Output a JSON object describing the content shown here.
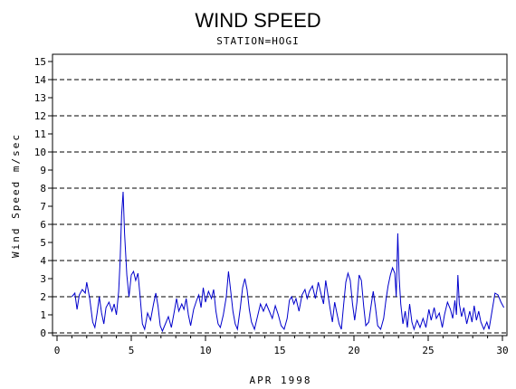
{
  "chart_data": {
    "type": "line",
    "title": "WIND SPEED",
    "subtitle": "STATION=HOGI",
    "xlabel": "APR 1998",
    "ylabel": "Wind Speed m/sec",
    "xlim": [
      0,
      30.3
    ],
    "ylim": [
      0,
      15.4
    ],
    "x_ticks": [
      0,
      5,
      10,
      15,
      20,
      25,
      30
    ],
    "y_ticks": [
      0,
      1,
      2,
      3,
      4,
      5,
      6,
      7,
      8,
      9,
      10,
      11,
      12,
      13,
      14,
      15
    ],
    "y_tick_labels": [
      "0",
      "1",
      "2",
      "3",
      "4",
      "5",
      "6",
      "7",
      "8",
      "9",
      "10",
      "11",
      "12",
      "13",
      "14",
      "15"
    ],
    "x_tick_labels": [
      "0",
      "5",
      "10",
      "15",
      "20",
      "25",
      "30"
    ],
    "grid_y": [
      2,
      4,
      6,
      8,
      10,
      12,
      14
    ],
    "grid_style": "dashed",
    "line_color": "#0000cc",
    "series": [
      {
        "points": [
          [
            1.0,
            2.0
          ],
          [
            1.2,
            2.2
          ],
          [
            1.35,
            1.3
          ],
          [
            1.5,
            2.1
          ],
          [
            1.7,
            2.4
          ],
          [
            1.9,
            2.2
          ],
          [
            2.0,
            2.8
          ],
          [
            2.2,
            1.9
          ],
          [
            2.4,
            0.6
          ],
          [
            2.55,
            0.3
          ],
          [
            2.7,
            1.1
          ],
          [
            2.85,
            2.0
          ],
          [
            3.0,
            1.1
          ],
          [
            3.15,
            0.5
          ],
          [
            3.3,
            1.4
          ],
          [
            3.5,
            1.7
          ],
          [
            3.7,
            1.2
          ],
          [
            3.85,
            1.6
          ],
          [
            4.0,
            1.0
          ],
          [
            4.15,
            2.3
          ],
          [
            4.25,
            4.0
          ],
          [
            4.35,
            6.5
          ],
          [
            4.45,
            7.8
          ],
          [
            4.55,
            5.5
          ],
          [
            4.7,
            3.2
          ],
          [
            4.85,
            2.0
          ],
          [
            5.0,
            3.2
          ],
          [
            5.15,
            3.4
          ],
          [
            5.3,
            2.9
          ],
          [
            5.45,
            3.3
          ],
          [
            5.6,
            2.0
          ],
          [
            5.75,
            0.5
          ],
          [
            5.9,
            0.2
          ],
          [
            6.1,
            1.1
          ],
          [
            6.3,
            0.7
          ],
          [
            6.5,
            1.6
          ],
          [
            6.65,
            2.2
          ],
          [
            6.8,
            1.5
          ],
          [
            6.95,
            0.4
          ],
          [
            7.1,
            0.1
          ],
          [
            7.3,
            0.5
          ],
          [
            7.5,
            0.9
          ],
          [
            7.7,
            0.3
          ],
          [
            7.9,
            1.2
          ],
          [
            8.05,
            1.9
          ],
          [
            8.2,
            1.2
          ],
          [
            8.4,
            1.6
          ],
          [
            8.55,
            1.3
          ],
          [
            8.7,
            1.9
          ],
          [
            8.85,
            1.0
          ],
          [
            9.0,
            0.4
          ],
          [
            9.2,
            1.3
          ],
          [
            9.4,
            1.8
          ],
          [
            9.55,
            2.1
          ],
          [
            9.7,
            1.4
          ],
          [
            9.85,
            2.5
          ],
          [
            10.0,
            1.7
          ],
          [
            10.2,
            2.3
          ],
          [
            10.4,
            1.9
          ],
          [
            10.55,
            2.4
          ],
          [
            10.7,
            1.2
          ],
          [
            10.85,
            0.5
          ],
          [
            11.0,
            0.3
          ],
          [
            11.2,
            1.0
          ],
          [
            11.4,
            2.0
          ],
          [
            11.55,
            3.4
          ],
          [
            11.7,
            2.3
          ],
          [
            11.85,
            1.2
          ],
          [
            12.0,
            0.5
          ],
          [
            12.15,
            0.2
          ],
          [
            12.35,
            1.4
          ],
          [
            12.5,
            2.5
          ],
          [
            12.65,
            3.0
          ],
          [
            12.8,
            2.4
          ],
          [
            12.95,
            1.3
          ],
          [
            13.1,
            0.6
          ],
          [
            13.3,
            0.2
          ],
          [
            13.5,
            0.9
          ],
          [
            13.7,
            1.6
          ],
          [
            13.9,
            1.2
          ],
          [
            14.1,
            1.6
          ],
          [
            14.3,
            1.2
          ],
          [
            14.5,
            0.8
          ],
          [
            14.7,
            1.5
          ],
          [
            14.9,
            1.0
          ],
          [
            15.1,
            0.4
          ],
          [
            15.3,
            0.2
          ],
          [
            15.5,
            0.8
          ],
          [
            15.65,
            1.8
          ],
          [
            15.8,
            2.0
          ],
          [
            15.95,
            1.6
          ],
          [
            16.1,
            1.9
          ],
          [
            16.3,
            1.2
          ],
          [
            16.5,
            2.1
          ],
          [
            16.7,
            2.4
          ],
          [
            16.85,
            1.9
          ],
          [
            17.0,
            2.3
          ],
          [
            17.2,
            2.6
          ],
          [
            17.4,
            1.9
          ],
          [
            17.6,
            2.8
          ],
          [
            17.8,
            2.1
          ],
          [
            17.95,
            1.6
          ],
          [
            18.1,
            2.9
          ],
          [
            18.25,
            2.1
          ],
          [
            18.4,
            1.3
          ],
          [
            18.55,
            0.6
          ],
          [
            18.7,
            1.7
          ],
          [
            18.85,
            1.1
          ],
          [
            19.0,
            0.5
          ],
          [
            19.15,
            0.2
          ],
          [
            19.3,
            1.5
          ],
          [
            19.45,
            2.8
          ],
          [
            19.6,
            3.3
          ],
          [
            19.75,
            2.9
          ],
          [
            19.9,
            1.6
          ],
          [
            20.05,
            0.7
          ],
          [
            20.2,
            1.7
          ],
          [
            20.35,
            3.2
          ],
          [
            20.5,
            2.9
          ],
          [
            20.65,
            1.5
          ],
          [
            20.8,
            0.4
          ],
          [
            21.0,
            0.6
          ],
          [
            21.15,
            1.5
          ],
          [
            21.3,
            2.3
          ],
          [
            21.45,
            1.4
          ],
          [
            21.6,
            0.4
          ],
          [
            21.8,
            0.2
          ],
          [
            22.0,
            0.8
          ],
          [
            22.15,
            1.8
          ],
          [
            22.3,
            2.6
          ],
          [
            22.45,
            3.2
          ],
          [
            22.6,
            3.6
          ],
          [
            22.75,
            3.3
          ],
          [
            22.85,
            2.0
          ],
          [
            22.95,
            5.5
          ],
          [
            23.05,
            3.0
          ],
          [
            23.15,
            1.6
          ],
          [
            23.3,
            0.5
          ],
          [
            23.45,
            1.2
          ],
          [
            23.6,
            0.3
          ],
          [
            23.75,
            1.6
          ],
          [
            23.9,
            0.6
          ],
          [
            24.05,
            0.2
          ],
          [
            24.25,
            0.7
          ],
          [
            24.45,
            0.3
          ],
          [
            24.65,
            0.8
          ],
          [
            24.85,
            0.3
          ],
          [
            25.05,
            1.3
          ],
          [
            25.2,
            0.7
          ],
          [
            25.4,
            1.4
          ],
          [
            25.55,
            0.8
          ],
          [
            25.75,
            1.1
          ],
          [
            25.95,
            0.3
          ],
          [
            26.1,
            1.0
          ],
          [
            26.3,
            1.7
          ],
          [
            26.5,
            1.3
          ],
          [
            26.65,
            0.8
          ],
          [
            26.8,
            1.8
          ],
          [
            26.9,
            1.0
          ],
          [
            27.0,
            3.2
          ],
          [
            27.1,
            1.6
          ],
          [
            27.25,
            0.9
          ],
          [
            27.4,
            1.4
          ],
          [
            27.6,
            0.5
          ],
          [
            27.8,
            1.2
          ],
          [
            27.95,
            0.6
          ],
          [
            28.1,
            1.5
          ],
          [
            28.25,
            0.7
          ],
          [
            28.4,
            1.2
          ],
          [
            28.55,
            0.6
          ],
          [
            28.75,
            0.2
          ],
          [
            28.95,
            0.6
          ],
          [
            29.1,
            0.2
          ],
          [
            29.3,
            1.2
          ],
          [
            29.5,
            2.2
          ],
          [
            29.7,
            2.1
          ],
          [
            29.9,
            1.7
          ],
          [
            30.1,
            1.4
          ]
        ]
      }
    ]
  }
}
